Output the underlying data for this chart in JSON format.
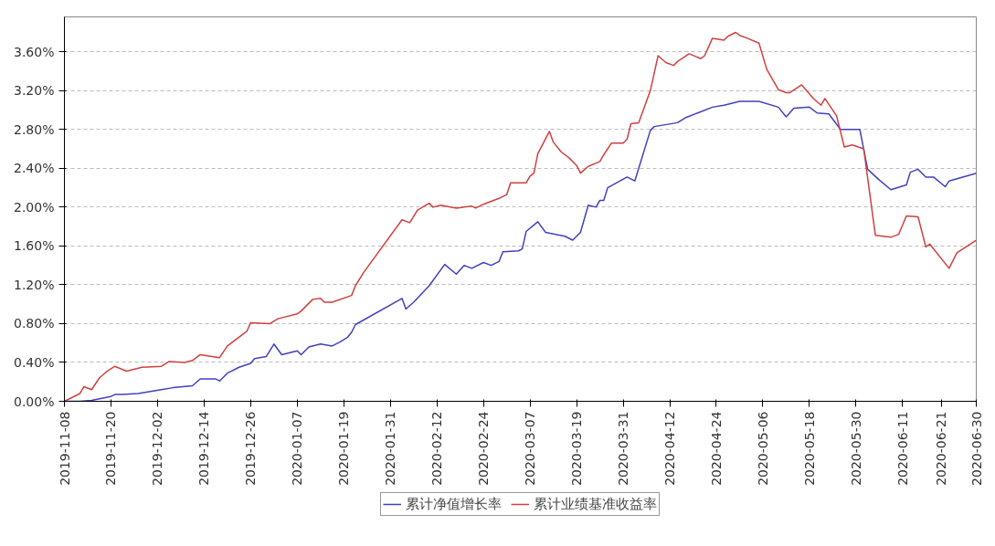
{
  "chart_data": {
    "type": "line",
    "x": [
      "2019-11-08",
      "2019-11-12",
      "2019-11-15",
      "2019-11-20",
      "2019-11-21",
      "2019-11-23",
      "2019-11-27",
      "2019-12-03",
      "2019-12-06",
      "2019-12-11",
      "2019-12-13",
      "2019-12-17",
      "2019-12-18",
      "2019-12-20",
      "2019-12-23",
      "2019-12-26",
      "2019-12-27",
      "2019-12-30",
      "2020-01-01",
      "2020-01-03",
      "2020-01-07",
      "2020-01-08",
      "2020-01-10",
      "2020-01-13",
      "2020-01-16",
      "2020-01-18",
      "2020-01-20",
      "2020-01-21",
      "2020-01-22",
      "2020-02-03",
      "2020-02-04",
      "2020-02-06",
      "2020-02-10",
      "2020-02-14",
      "2020-02-17",
      "2020-02-19",
      "2020-02-21",
      "2020-02-24",
      "2020-02-26",
      "2020-02-28",
      "2020-02-29",
      "2020-03-04",
      "2020-03-05",
      "2020-03-06",
      "2020-03-09",
      "2020-03-11",
      "2020-03-16",
      "2020-03-18",
      "2020-03-20",
      "2020-03-22",
      "2020-03-24",
      "2020-03-25",
      "2020-03-26",
      "2020-03-27",
      "2020-04-01",
      "2020-04-03",
      "2020-04-07",
      "2020-04-08",
      "2020-04-14",
      "2020-04-16",
      "2020-04-23",
      "2020-04-26",
      "2020-04-30",
      "2020-05-05",
      "2020-05-10",
      "2020-05-12",
      "2020-05-14",
      "2020-05-18",
      "2020-05-20",
      "2020-05-23",
      "2020-05-26",
      "2020-05-31",
      "2020-06-02",
      "2020-06-05",
      "2020-06-08",
      "2020-06-12",
      "2020-06-13",
      "2020-06-15",
      "2020-06-17",
      "2020-06-19",
      "2020-06-22",
      "2020-06-23",
      "2020-06-30"
    ],
    "series": [
      {
        "name": "累计净值增长率",
        "color": "#4040c0",
        "values": [
          0,
          0.0,
          0.01,
          0.05,
          0.07,
          0.07,
          0.08,
          0.12,
          0.14,
          0.16,
          0.23,
          0.23,
          0.21,
          0.29,
          0.35,
          0.39,
          0.44,
          0.46,
          0.59,
          0.48,
          0.52,
          0.48,
          0.56,
          0.59,
          0.57,
          0.61,
          0.66,
          0.71,
          0.79,
          1.06,
          0.95,
          1.02,
          1.19,
          1.41,
          1.31,
          1.4,
          1.37,
          1.43,
          1.4,
          1.44,
          1.54,
          1.55,
          1.57,
          1.75,
          1.85,
          1.74,
          1.7,
          1.66,
          1.74,
          2.02,
          2.0,
          2.07,
          2.07,
          2.2,
          2.31,
          2.27,
          2.79,
          2.83,
          2.87,
          2.92,
          3.03,
          3.05,
          3.09,
          3.09,
          3.03,
          2.93,
          3.02,
          3.03,
          2.97,
          2.96,
          2.8,
          2.8,
          2.39,
          2.28,
          2.18,
          2.23,
          2.36,
          2.39,
          2.31,
          2.31,
          2.21,
          2.27,
          2.35
        ]
      },
      {
        "name": "累计业绩基准收益率",
        "color": "#d04040",
        "x": [
          "2019-11-08",
          "2019-11-12",
          "2019-11-13",
          "2019-11-15",
          "2019-11-17",
          "2019-11-19",
          "2019-11-21",
          "2019-11-24",
          "2019-11-28",
          "2019-12-03",
          "2019-12-05",
          "2019-12-09",
          "2019-12-11",
          "2019-12-13",
          "2019-12-18",
          "2019-12-20",
          "2019-12-25",
          "2019-12-26",
          "2019-12-31",
          "2020-01-02",
          "2020-01-07",
          "2020-01-08",
          "2020-01-11",
          "2020-01-13",
          "2020-01-14",
          "2020-01-16",
          "2020-01-21",
          "2020-01-22",
          "2020-01-24",
          "2020-02-03",
          "2020-02-05",
          "2020-02-07",
          "2020-02-10",
          "2020-02-11",
          "2020-02-13",
          "2020-02-17",
          "2020-02-21",
          "2020-02-22",
          "2020-02-24",
          "2020-02-28",
          "2020-03-01",
          "2020-03-02",
          "2020-03-06",
          "2020-03-07",
          "2020-03-08",
          "2020-03-09",
          "2020-03-12",
          "2020-03-13",
          "2020-03-15",
          "2020-03-17",
          "2020-03-19",
          "2020-03-20",
          "2020-03-22",
          "2020-03-25",
          "2020-03-26",
          "2020-03-28",
          "2020-03-31",
          "2020-04-01",
          "2020-04-02",
          "2020-04-04",
          "2020-04-07",
          "2020-04-09",
          "2020-04-11",
          "2020-04-13",
          "2020-04-14",
          "2020-04-17",
          "2020-04-20",
          "2020-04-21",
          "2020-04-23",
          "2020-04-26",
          "2020-04-27",
          "2020-04-29",
          "2020-04-30",
          "2020-05-02",
          "2020-05-05",
          "2020-05-07",
          "2020-05-10",
          "2020-05-12",
          "2020-05-13",
          "2020-05-16",
          "2020-05-19",
          "2020-05-21",
          "2020-05-22",
          "2020-05-25",
          "2020-05-27",
          "2020-05-29",
          "2020-06-01",
          "2020-06-04",
          "2020-06-08",
          "2020-06-10",
          "2020-06-12",
          "2020-06-15",
          "2020-06-17",
          "2020-06-18",
          "2020-06-23",
          "2020-06-25",
          "2020-06-30"
        ],
        "values": [
          0,
          0.08,
          0.15,
          0.12,
          0.24,
          0.31,
          0.36,
          0.31,
          0.35,
          0.36,
          0.41,
          0.4,
          0.42,
          0.48,
          0.45,
          0.57,
          0.72,
          0.81,
          0.8,
          0.85,
          0.9,
          0.93,
          1.05,
          1.06,
          1.02,
          1.02,
          1.09,
          1.19,
          1.32,
          1.87,
          1.84,
          1.97,
          2.04,
          2.0,
          2.02,
          1.99,
          2.01,
          1.99,
          2.03,
          2.09,
          2.13,
          2.25,
          2.25,
          2.32,
          2.35,
          2.55,
          2.78,
          2.67,
          2.57,
          2.51,
          2.43,
          2.35,
          2.42,
          2.47,
          2.54,
          2.66,
          2.66,
          2.7,
          2.86,
          2.87,
          3.2,
          3.56,
          3.49,
          3.46,
          3.5,
          3.58,
          3.53,
          3.56,
          3.74,
          3.72,
          3.76,
          3.8,
          3.77,
          3.74,
          3.69,
          3.42,
          3.21,
          3.18,
          3.18,
          3.26,
          3.12,
          3.05,
          3.12,
          2.94,
          2.62,
          2.64,
          2.6,
          1.71,
          1.69,
          1.72,
          1.91,
          1.9,
          1.59,
          1.62,
          1.37,
          1.53,
          1.66
        ]
      }
    ],
    "xlim": [
      "2019-11-08",
      "2020-06-30"
    ],
    "xticks": [
      "2019-11-08",
      "2019-11-20",
      "2019-12-02",
      "2019-12-14",
      "2019-12-26",
      "2020-01-07",
      "2020-01-19",
      "2020-01-31",
      "2020-02-12",
      "2020-02-24",
      "2020-03-07",
      "2020-03-19",
      "2020-03-31",
      "2020-04-12",
      "2020-04-24",
      "2020-05-06",
      "2020-05-18",
      "2020-05-30",
      "2020-06-11",
      "2020-06-21",
      "2020-06-30"
    ],
    "ylim": [
      0,
      3.96
    ],
    "yticks": [
      {
        "value": 0,
        "label": "0.00%"
      },
      {
        "value": 0.4,
        "label": "0.40%"
      },
      {
        "value": 0.8,
        "label": "0.80%"
      },
      {
        "value": 1.2,
        "label": "1.20%"
      },
      {
        "value": 1.6,
        "label": "1.60%"
      },
      {
        "value": 2.0,
        "label": "2.00%"
      },
      {
        "value": 2.4,
        "label": "2.40%"
      },
      {
        "value": 2.8,
        "label": "2.80%"
      },
      {
        "value": 3.2,
        "label": "3.20%"
      },
      {
        "value": 3.6,
        "label": "3.60%"
      }
    ],
    "grid": "y",
    "legend": "bottom",
    "line_style": "solid"
  }
}
